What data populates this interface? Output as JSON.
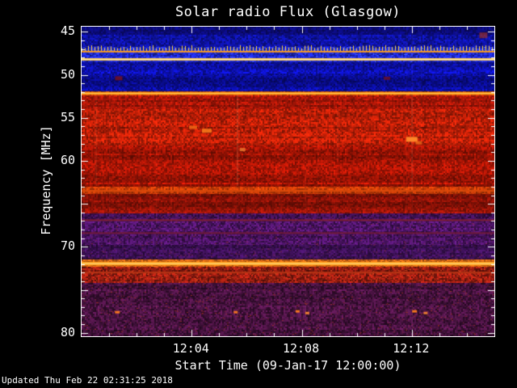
{
  "updated_text": "Updated Thu Feb 22 02:31:25 2018",
  "colors": {
    "background": "#000000",
    "text": "#ffffff",
    "frame": "#ffffff"
  },
  "chart_data": {
    "type": "heatmap",
    "title": "Solar radio Flux (Glasgow)",
    "xlabel": "Start Time (09-Jan-17 12:00:00)",
    "ylabel": "Frequency [MHz]",
    "x_ticks": [
      "12:04",
      "12:08",
      "12:12"
    ],
    "x_tick_minutes": [
      4,
      8,
      12
    ],
    "x_range_minutes": [
      0,
      15
    ],
    "y_ticks": [
      45,
      50,
      55,
      60,
      70,
      80
    ],
    "y_range": [
      44.4,
      80.4
    ],
    "y_axis_direction": "increasing-downward",
    "grid": false,
    "legend": "none",
    "bands": [
      {
        "f0": 44.4,
        "f1": 45.4,
        "color": "#0b0b78",
        "noise": 0.3
      },
      {
        "f0": 45.4,
        "f1": 46.8,
        "color": "#0f14b4",
        "noise": 0.35
      },
      {
        "f0": 46.8,
        "f1": 48.6,
        "color": "#1c28d2",
        "noise": 0.4,
        "speckle": {
          "count": 350,
          "color": "#5577ff"
        }
      },
      {
        "f0": 48.6,
        "f1": 50.2,
        "color": "#0c10a8",
        "noise": 0.35
      },
      {
        "f0": 50.2,
        "f1": 52.0,
        "color": "#0a0d96",
        "noise": 0.35
      },
      {
        "f0": 52.0,
        "f1": 52.45,
        "color": "#c85510",
        "noise": 0.3
      },
      {
        "f0": 52.45,
        "f1": 54.0,
        "color": "#a81708",
        "noise": 0.3
      },
      {
        "f0": 54.0,
        "f1": 58.3,
        "color": "#c02008",
        "noise": 0.35
      },
      {
        "f0": 58.3,
        "f1": 63.1,
        "color": "#aa1606",
        "noise": 0.32
      },
      {
        "f0": 63.1,
        "f1": 63.9,
        "color": "#c83c08",
        "noise": 0.3
      },
      {
        "f0": 63.9,
        "f1": 66.2,
        "color": "#951408",
        "noise": 0.3
      },
      {
        "f0": 66.2,
        "f1": 69.8,
        "color": "#47135f",
        "noise": 0.45,
        "speckle": {
          "count": 450,
          "color": "#8a2840"
        }
      },
      {
        "f0": 69.8,
        "f1": 71.5,
        "color": "#391052",
        "noise": 0.4,
        "speckle": {
          "count": 250,
          "color": "#7a2440"
        }
      },
      {
        "f0": 71.5,
        "f1": 72.4,
        "color": "#d86a12",
        "noise": 0.28
      },
      {
        "f0": 72.4,
        "f1": 74.2,
        "color": "#8f1b10",
        "noise": 0.45,
        "speckle": {
          "count": 500,
          "color": "#e05020"
        }
      },
      {
        "f0": 74.2,
        "f1": 80.4,
        "color": "#45123e",
        "noise": 0.5,
        "speckle": {
          "count": 700,
          "color": "#a03020"
        }
      }
    ],
    "lines": [
      {
        "f": 47.3,
        "color": "#ff9d1c",
        "width": 2,
        "picket": true,
        "picket_color": "#ffd34a"
      },
      {
        "f": 48.2,
        "color": "#ffc84a",
        "width": 3,
        "core": "#fff2b8"
      },
      {
        "f": 52.15,
        "color": "#ff8d12",
        "width": 3,
        "core": "#ffcf5a"
      },
      {
        "f": 63.5,
        "color": "#d8490a",
        "width": 2
      },
      {
        "f": 66.9,
        "color": "#7e1e32",
        "width": 2
      },
      {
        "f": 68.4,
        "color": "#701a38",
        "width": 2
      },
      {
        "f": 71.95,
        "color": "#ffa41e",
        "width": 4,
        "core": "#ffeaa0"
      },
      {
        "f": 73.0,
        "color": "#b43414",
        "width": 2
      }
    ],
    "streaks": [
      {
        "t": 5.65,
        "f0": 52.0,
        "f1": 63.0,
        "alpha": 0.12
      },
      {
        "t": 0.5,
        "f0": 52.0,
        "f1": 63.0,
        "alpha": 0.07
      },
      {
        "t": 9.3,
        "f0": 54.0,
        "f1": 60.0,
        "alpha": 0.06
      },
      {
        "t": 12.0,
        "f0": 52.0,
        "f1": 63.5,
        "alpha": 0.08
      }
    ],
    "spots": [
      {
        "t": 1.35,
        "f": 50.4,
        "w": 9,
        "h": 5,
        "color": "#6e1024",
        "alpha": 0.9
      },
      {
        "t": 11.1,
        "f": 50.4,
        "w": 8,
        "h": 4,
        "color": "#6e1024",
        "alpha": 0.8
      },
      {
        "t": 4.05,
        "f": 56.1,
        "w": 10,
        "h": 4,
        "color": "#f06a14",
        "alpha": 0.85
      },
      {
        "t": 4.55,
        "f": 56.5,
        "w": 12,
        "h": 5,
        "color": "#f5791a",
        "alpha": 0.9
      },
      {
        "t": 5.85,
        "f": 58.7,
        "w": 7,
        "h": 4,
        "color": "#f08030",
        "alpha": 0.8
      },
      {
        "t": 12.0,
        "f": 57.5,
        "w": 14,
        "h": 6,
        "color": "#ff8c2a",
        "alpha": 0.95
      },
      {
        "t": 12.25,
        "f": 57.9,
        "w": 8,
        "h": 4,
        "color": "#e86a18",
        "alpha": 0.8
      },
      {
        "t": 14.6,
        "f": 45.4,
        "w": 10,
        "h": 7,
        "color": "#b03418",
        "alpha": 0.6
      },
      {
        "t": 1.3,
        "f": 77.6,
        "w": 6,
        "h": 3,
        "color": "#ff7c1e",
        "alpha": 0.95
      },
      {
        "t": 5.6,
        "f": 77.6,
        "w": 5,
        "h": 3,
        "color": "#ff7c1e",
        "alpha": 0.9
      },
      {
        "t": 7.85,
        "f": 77.5,
        "w": 5,
        "h": 3,
        "color": "#ff7c1e",
        "alpha": 0.95
      },
      {
        "t": 8.2,
        "f": 77.7,
        "w": 5,
        "h": 3,
        "color": "#ff8c2e",
        "alpha": 0.9
      },
      {
        "t": 12.1,
        "f": 77.5,
        "w": 6,
        "h": 3,
        "color": "#ff7c1e",
        "alpha": 0.95
      },
      {
        "t": 12.5,
        "f": 77.7,
        "w": 5,
        "h": 3,
        "color": "#ff8c2e",
        "alpha": 0.85
      }
    ]
  }
}
